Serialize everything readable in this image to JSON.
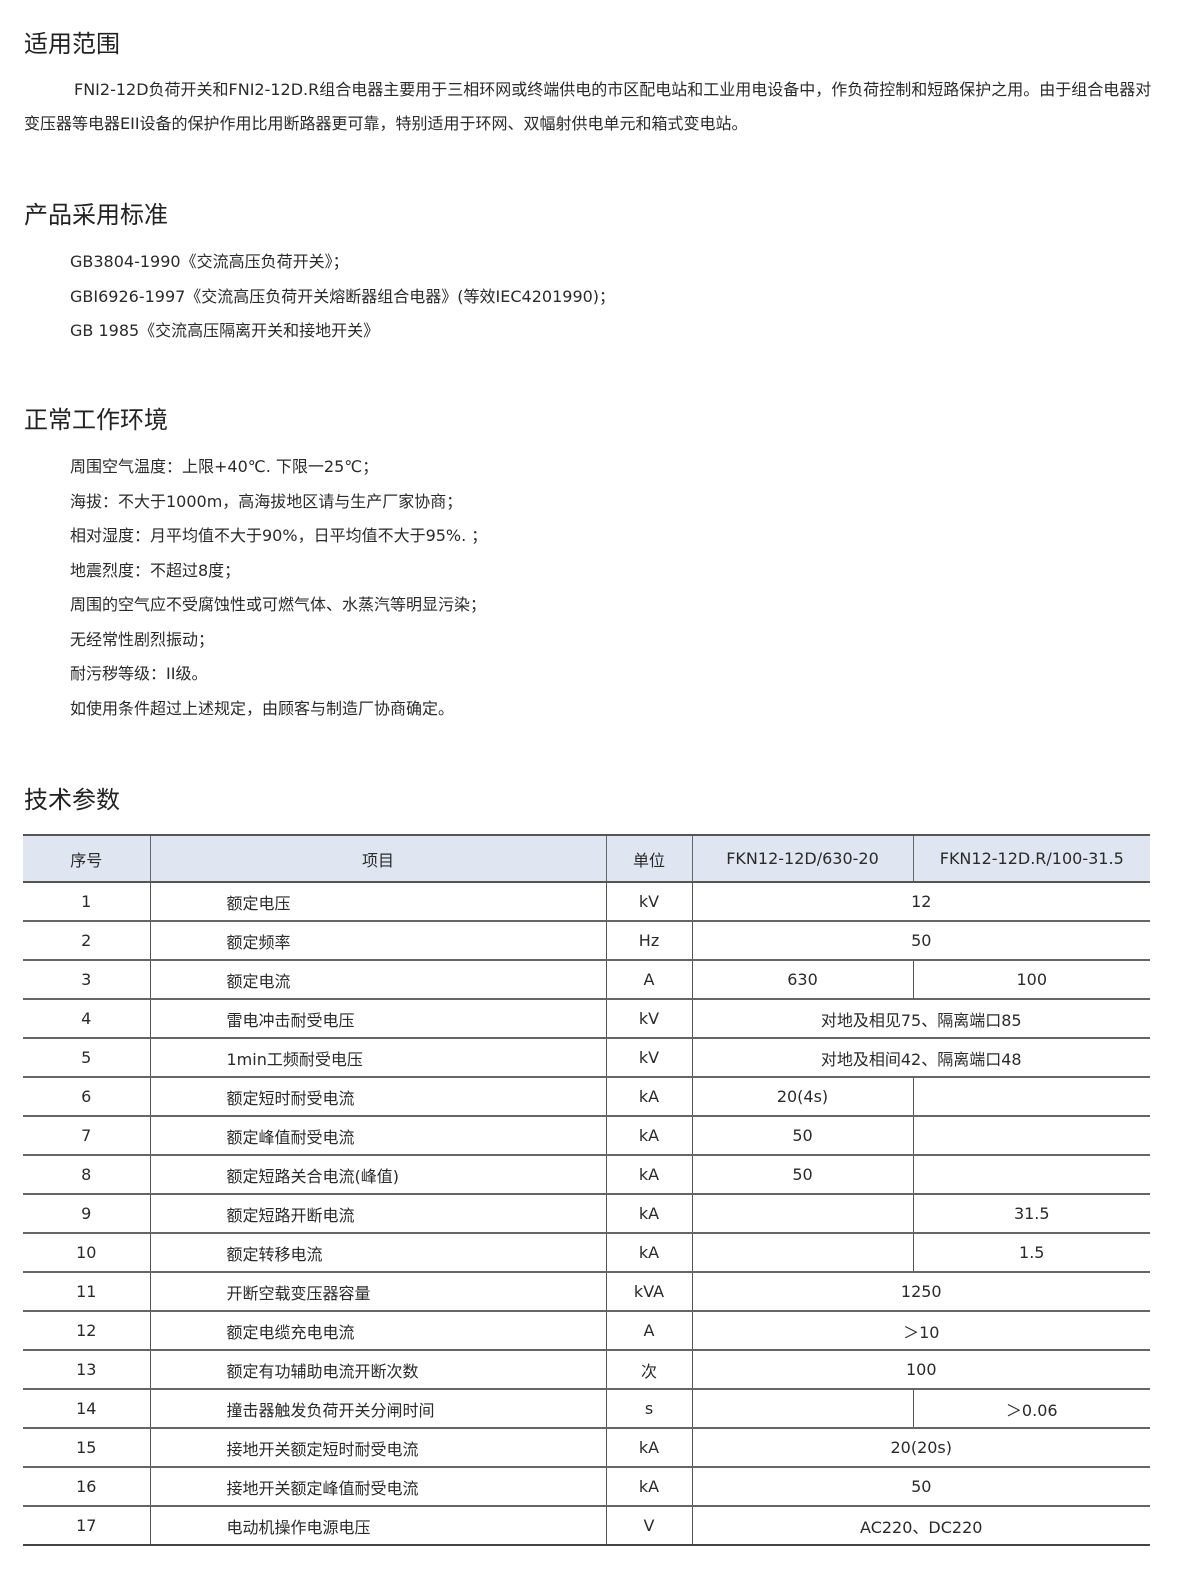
{
  "sections": {
    "scope": {
      "title": "适用范围",
      "text": "FNI2-12D负荷开关和FNI2-12D.R组合电器主要用于三相环网或终端供电的市区配电站和工业用电设备中，作负荷控制和短路保护之用。由于组合电器对变压器等电器EII设备的保护作用比用断路器更可靠，特别适用于环网、双幅射供电单元和箱式变电站。"
    },
    "standards": {
      "title": "产品采用标准",
      "items": [
        "GB3804-1990《交流高压负荷开关》；",
        "GBI6926-1997《交流高压负荷开关熔断器组合电器》(等效IEC4201990)；",
        "GB 1985《交流高压隔离开关和接地开关》"
      ]
    },
    "environment": {
      "title": "正常工作环境",
      "items": [
        "周围空气温度：上限+40℃. 下限一25℃；",
        "海拔：不大于1000m，高海拔地区请与生产厂家协商；",
        "相对湿度：月平均值不大于90%，日平均值不大于95%. ；",
        "地震烈度：不超过8度；",
        "周围的空气应不受腐蚀性或可燃气体、水蒸汽等明显污染；",
        "无经常性剧烈振动；",
        "耐污秽等级：II级。",
        "如使用条件超过上述规定，由顾客与制造厂协商确定。"
      ]
    },
    "params": {
      "title": "技术参数"
    }
  },
  "table": {
    "header_bg": "#dfe6f2",
    "headers": [
      "序号",
      "项目",
      "单位",
      "FKN12-12D/630-20",
      "FKN12-12D.R/100-31.5"
    ],
    "rows": [
      {
        "no": "1",
        "item": "额定电压",
        "unit": "kV",
        "merged": "12"
      },
      {
        "no": "2",
        "item": "额定频率",
        "unit": "Hz",
        "merged": "50"
      },
      {
        "no": "3",
        "item": "额定电流",
        "unit": "A",
        "v1": "630",
        "v2": "100"
      },
      {
        "no": "4",
        "item": "雷电冲击耐受电压",
        "unit": "kV",
        "merged": "对地及相见75、隔离端口85"
      },
      {
        "no": "5",
        "item": "1min工频耐受电压",
        "unit": "kV",
        "merged": "对地及相间42、隔离端口48"
      },
      {
        "no": "6",
        "item": "额定短时耐受电流",
        "unit": "kA",
        "v1": "20(4s)",
        "v2": ""
      },
      {
        "no": "7",
        "item": "额定峰值耐受电流",
        "unit": "kA",
        "v1": "50",
        "v2": ""
      },
      {
        "no": "8",
        "item": "额定短路关合电流(峰值)",
        "unit": "kA",
        "v1": "50",
        "v2": ""
      },
      {
        "no": "9",
        "item": "额定短路开断电流",
        "unit": "kA",
        "v1": "",
        "v2": "31.5"
      },
      {
        "no": "10",
        "item": "额定转移电流",
        "unit": "kA",
        "v1": "",
        "v2": "1.5"
      },
      {
        "no": "11",
        "item": "开断空载变压器容量",
        "unit": "kVA",
        "merged": "1250"
      },
      {
        "no": "12",
        "item": "额定电缆充电电流",
        "unit": "A",
        "merged": "＞10"
      },
      {
        "no": "13",
        "item": "额定有功辅助电流开断次数",
        "unit": "次",
        "merged": "100"
      },
      {
        "no": "14",
        "item": "撞击器触发负荷开关分闸时间",
        "unit": "s",
        "v1": "",
        "v2": "＞0.06"
      },
      {
        "no": "15",
        "item": "接地开关额定短时耐受电流",
        "unit": "kA",
        "merged": "20(20s)"
      },
      {
        "no": "16",
        "item": "接地开关额定峰值耐受电流",
        "unit": "kA",
        "merged": "50"
      },
      {
        "no": "17",
        "item": "电动机操作电源电压",
        "unit": "V",
        "merged": "AC220、DC220"
      }
    ]
  }
}
